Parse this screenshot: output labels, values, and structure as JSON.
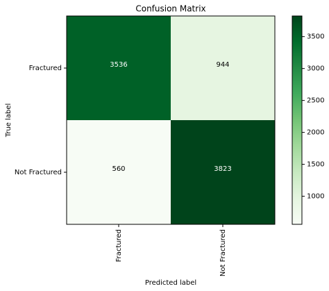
{
  "chart_data": {
    "type": "heatmap",
    "title": "Confusion Matrix",
    "xlabel": "Predicted label",
    "ylabel": "True label",
    "x_categories": [
      "Fractured",
      "Not Fractured"
    ],
    "y_categories": [
      "Fractured",
      "Not Fractured"
    ],
    "values": [
      [
        3536,
        944
      ],
      [
        560,
        3823
      ]
    ],
    "colormap": [
      "#f7fcf5",
      "#e5f5e0",
      "#c7e9c0",
      "#a1d99b",
      "#74c476",
      "#41ab5d",
      "#238b45",
      "#006d2c",
      "#00441b"
    ],
    "colorbar_lim": [
      560,
      3823
    ],
    "colorbar_ticks": [
      1000,
      1500,
      2000,
      2500,
      3000,
      3500
    ]
  }
}
